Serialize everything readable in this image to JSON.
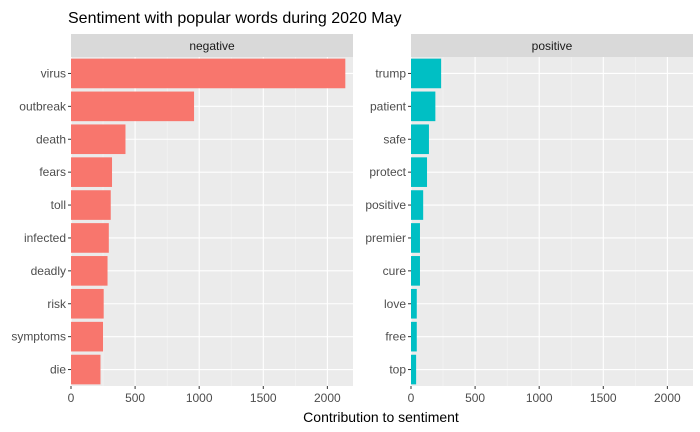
{
  "chart_data": {
    "type": "bar",
    "orientation": "horizontal",
    "title": "Sentiment with popular words during 2020 May",
    "xlabel": "Contribution to sentiment",
    "ylabel": "",
    "xlim": [
      0,
      2200
    ],
    "x_ticks": [
      0,
      500,
      1000,
      1500,
      2000
    ],
    "grid": true,
    "facets": [
      {
        "name": "negative",
        "color": "#F8766D",
        "categories": [
          "virus",
          "outbreak",
          "death",
          "fears",
          "toll",
          "infected",
          "deadly",
          "risk",
          "symptoms",
          "die"
        ],
        "values": [
          2140,
          960,
          425,
          320,
          310,
          295,
          285,
          255,
          250,
          230
        ]
      },
      {
        "name": "positive",
        "color": "#00BFC4",
        "categories": [
          "trump",
          "patient",
          "safe",
          "protect",
          "positive",
          "premier",
          "cure",
          "love",
          "free",
          "top"
        ],
        "values": [
          235,
          190,
          140,
          125,
          95,
          70,
          70,
          45,
          45,
          40
        ]
      }
    ]
  }
}
